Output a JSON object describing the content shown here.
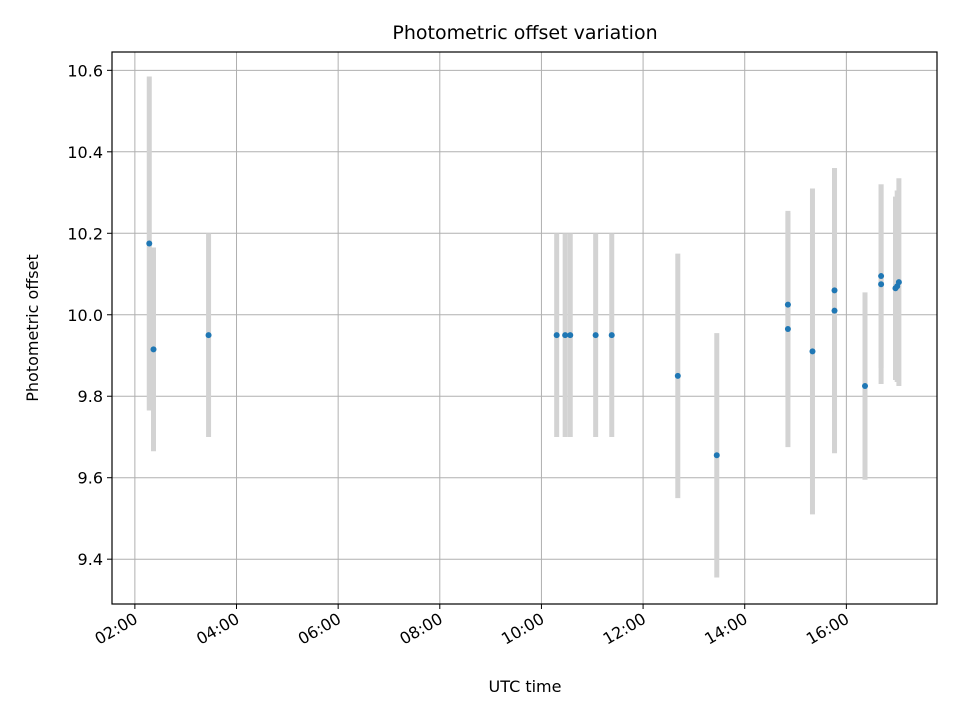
{
  "chart_data": {
    "type": "scatter",
    "title": "Photometric offset variation",
    "xlabel": "UTC time",
    "ylabel": "Photometric offset",
    "x_ticks": [
      "02:00",
      "04:00",
      "06:00",
      "08:00",
      "10:00",
      "12:00",
      "14:00",
      "16:00"
    ],
    "y_ticks": [
      "9.4",
      "9.6",
      "9.8",
      "10.0",
      "10.2",
      "10.4",
      "10.6"
    ],
    "xlim": [
      "01:33",
      "17:47"
    ],
    "ylim": [
      9.29,
      10.645
    ],
    "grid": true,
    "colors": {
      "marker": "#1f77b4",
      "errorbar": "#d3d3d3",
      "grid": "#b0b0b0"
    },
    "series": [
      {
        "points": [
          {
            "x": "02:17",
            "y": 10.175,
            "yerr": 0.41
          },
          {
            "x": "02:22",
            "y": 9.915,
            "yerr": 0.25
          },
          {
            "x": "03:27",
            "y": 9.95,
            "yerr": 0.25
          },
          {
            "x": "10:18",
            "y": 9.95,
            "yerr": 0.25
          },
          {
            "x": "10:28",
            "y": 9.95,
            "yerr": 0.25
          },
          {
            "x": "10:34",
            "y": 9.95,
            "yerr": 0.25
          },
          {
            "x": "11:04",
            "y": 9.95,
            "yerr": 0.25
          },
          {
            "x": "11:23",
            "y": 9.95,
            "yerr": 0.25
          },
          {
            "x": "12:41",
            "y": 9.85,
            "yerr": 0.3
          },
          {
            "x": "13:27",
            "y": 9.655,
            "yerr": 0.3
          },
          {
            "x": "14:51",
            "y": 10.025,
            "yerr": 0.225
          },
          {
            "x": "14:51",
            "y": 9.965,
            "yerr": 0.29
          },
          {
            "x": "15:20",
            "y": 9.91,
            "yerr": 0.4
          },
          {
            "x": "15:46",
            "y": 10.06,
            "yerr": 0.3
          },
          {
            "x": "15:46",
            "y": 10.01,
            "yerr": 0.35
          },
          {
            "x": "16:22",
            "y": 9.825,
            "yerr": 0.23
          },
          {
            "x": "16:41",
            "y": 10.095,
            "yerr": 0.225
          },
          {
            "x": "16:41",
            "y": 10.075,
            "yerr": 0.245
          },
          {
            "x": "16:58",
            "y": 10.065,
            "yerr": 0.225
          },
          {
            "x": "17:00",
            "y": 10.07,
            "yerr": 0.235
          },
          {
            "x": "17:02",
            "y": 10.08,
            "yerr": 0.255
          }
        ]
      }
    ]
  }
}
